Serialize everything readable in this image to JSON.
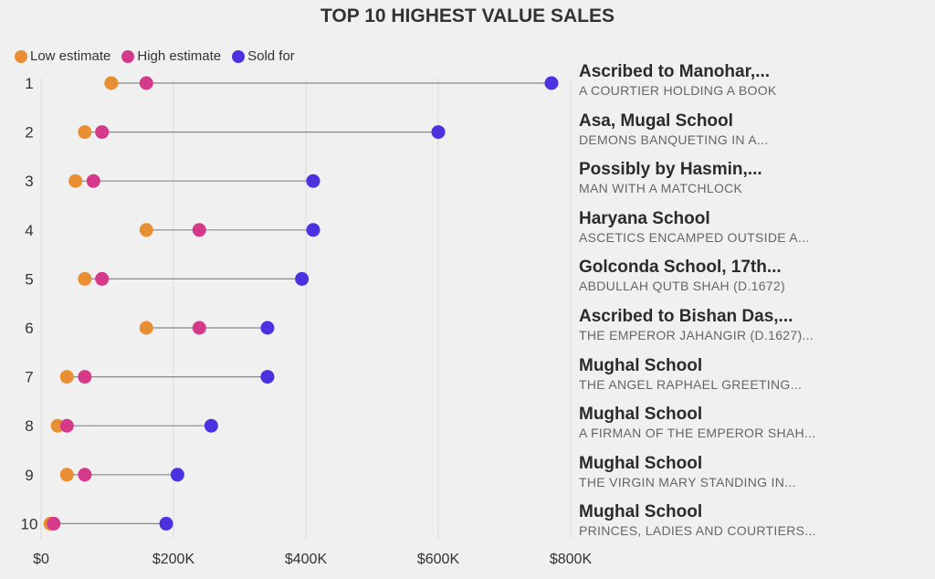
{
  "chart_data": {
    "type": "dumbbell",
    "title": "TOP 10 HIGHEST VALUE SALES",
    "legend": {
      "position": "top-left",
      "entries": [
        {
          "name": "Low estimate",
          "color": "#E88F33"
        },
        {
          "name": "High estimate",
          "color": "#D53A8A"
        },
        {
          "name": "Sold for",
          "color": "#4A32E0"
        }
      ]
    },
    "xlim": [
      0,
      800000
    ],
    "xticks": [
      0,
      200000,
      400000,
      600000,
      800000
    ],
    "xtick_labels": [
      "$0",
      "$200K",
      "$400K",
      "$600K",
      "$800K"
    ],
    "grid": true,
    "rows": [
      {
        "rank": "1",
        "artist": "Ascribed to Manohar,...",
        "work": "A COURTIER HOLDING A BOOK",
        "low": 106000,
        "high": 159000,
        "sold": 771000
      },
      {
        "rank": "2",
        "artist": "Asa, Mugal School",
        "work": "DEMONS BANQUETING IN A...",
        "low": 66000,
        "high": 92000,
        "sold": 600000
      },
      {
        "rank": "3",
        "artist": "Possibly by Hasmin,...",
        "work": "MAN WITH A MATCHLOCK",
        "low": 52000,
        "high": 79000,
        "sold": 411000
      },
      {
        "rank": "4",
        "artist": "Haryana School",
        "work": "ASCETICS ENCAMPED OUTSIDE A...",
        "low": 159000,
        "high": 239000,
        "sold": 411000
      },
      {
        "rank": "5",
        "artist": "Golconda School, 17th...",
        "work": "ABDULLAH QUTB SHAH (D.1672)",
        "low": 66000,
        "high": 92000,
        "sold": 394000
      },
      {
        "rank": "6",
        "artist": "Ascribed to Bishan Das,...",
        "work": "THE EMPEROR JAHANGIR (D.1627)...",
        "low": 159000,
        "high": 239000,
        "sold": 342000
      },
      {
        "rank": "7",
        "artist": "Mughal School",
        "work": "THE ANGEL RAPHAEL GREETING...",
        "low": 39000,
        "high": 66000,
        "sold": 342000
      },
      {
        "rank": "8",
        "artist": "Mughal School",
        "work": "A FIRMAN OF THE EMPEROR SHAH...",
        "low": 25000,
        "high": 39000,
        "sold": 257000
      },
      {
        "rank": "9",
        "artist": "Mughal School",
        "work": "THE VIRGIN MARY STANDING IN...",
        "low": 39000,
        "high": 66000,
        "sold": 206000
      },
      {
        "rank": "10",
        "artist": "Mughal School",
        "work": "PRINCES, LADIES AND COURTIERS...",
        "low": 14000,
        "high": 19000,
        "sold": 189000
      }
    ]
  }
}
